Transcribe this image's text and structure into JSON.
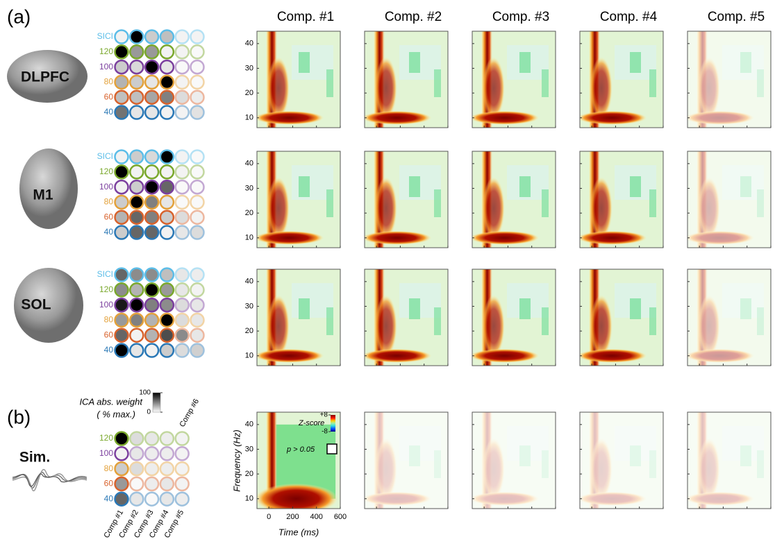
{
  "panel_labels": [
    "(a)",
    "(b)"
  ],
  "component_titles": [
    "Comp. #1",
    "Comp. #2",
    "Comp. #3",
    "Comp. #4",
    "Comp. #5"
  ],
  "condition_colors": {
    "SICI": "#5bbde8",
    "120": "#7aa82c",
    "100": "#7b3f9e",
    "80": "#e3a13a",
    "60": "#d8622c",
    "40": "#2a78b6"
  },
  "regions": [
    {
      "name": "DLPFC",
      "rows": [
        "SICI",
        "120",
        "100",
        "80",
        "60",
        "40"
      ],
      "weights": [
        [
          5,
          100,
          20,
          25,
          10,
          10
        ],
        [
          100,
          40,
          40,
          5,
          10,
          5
        ],
        [
          20,
          15,
          100,
          10,
          5,
          5
        ],
        [
          30,
          20,
          10,
          100,
          10,
          5
        ],
        [
          25,
          25,
          35,
          50,
          30,
          15
        ],
        [
          55,
          10,
          10,
          5,
          10,
          25
        ]
      ]
    },
    {
      "name": "M1",
      "rows": [
        "SICI",
        "120",
        "100",
        "80",
        "60",
        "40"
      ],
      "weights": [
        [
          5,
          20,
          15,
          100,
          10,
          5
        ],
        [
          100,
          5,
          5,
          5,
          10,
          5
        ],
        [
          5,
          20,
          100,
          60,
          5,
          5
        ],
        [
          20,
          100,
          50,
          10,
          5,
          5
        ],
        [
          30,
          60,
          50,
          20,
          30,
          10
        ],
        [
          20,
          60,
          60,
          5,
          20,
          30
        ]
      ]
    },
    {
      "name": "SOL",
      "rows": [
        "SICI",
        "120",
        "100",
        "80",
        "60",
        "40"
      ],
      "weights": [
        [
          60,
          45,
          45,
          25,
          20,
          15
        ],
        [
          45,
          30,
          100,
          40,
          20,
          10
        ],
        [
          90,
          100,
          50,
          45,
          30,
          20
        ],
        [
          40,
          50,
          30,
          100,
          30,
          20
        ],
        [
          60,
          5,
          30,
          70,
          100,
          20
        ],
        [
          100,
          10,
          5,
          20,
          30,
          40
        ]
      ]
    },
    {
      "name": "Sim.",
      "rows": [
        "120",
        "100",
        "80",
        "60",
        "40"
      ],
      "weights": [
        [
          100,
          30,
          20,
          15,
          10
        ],
        [
          5,
          20,
          15,
          15,
          10
        ],
        [
          20,
          30,
          15,
          15,
          10
        ],
        [
          40,
          5,
          15,
          20,
          10
        ],
        [
          60,
          20,
          5,
          20,
          15
        ]
      ]
    }
  ],
  "weight_columns": [
    "Comp #1",
    "Comp #2",
    "Comp #3",
    "Comp #4",
    "Comp #5"
  ],
  "extra_weight_column": "Comp #6",
  "weight_scale": {
    "title": "ICA abs. weight",
    "subtitle": "( % max.)",
    "lim": [
      0,
      100
    ],
    "ticks": [
      100,
      0
    ]
  },
  "tf_axes": {
    "xlabel": "Time (ms)",
    "ylabel": "Frequency (Hz)",
    "xlim": [
      -100,
      600
    ],
    "ylim": [
      6,
      45
    ],
    "xticks": [
      0,
      200,
      400,
      600
    ],
    "yticks": [
      10,
      20,
      30,
      40
    ]
  },
  "zscore": {
    "title": "Z-score",
    "lim": [
      -8,
      8
    ],
    "ticks": [
      {
        "value": 8,
        "label": "+8"
      },
      -8
    ]
  },
  "significance": "p > 0.05"
}
